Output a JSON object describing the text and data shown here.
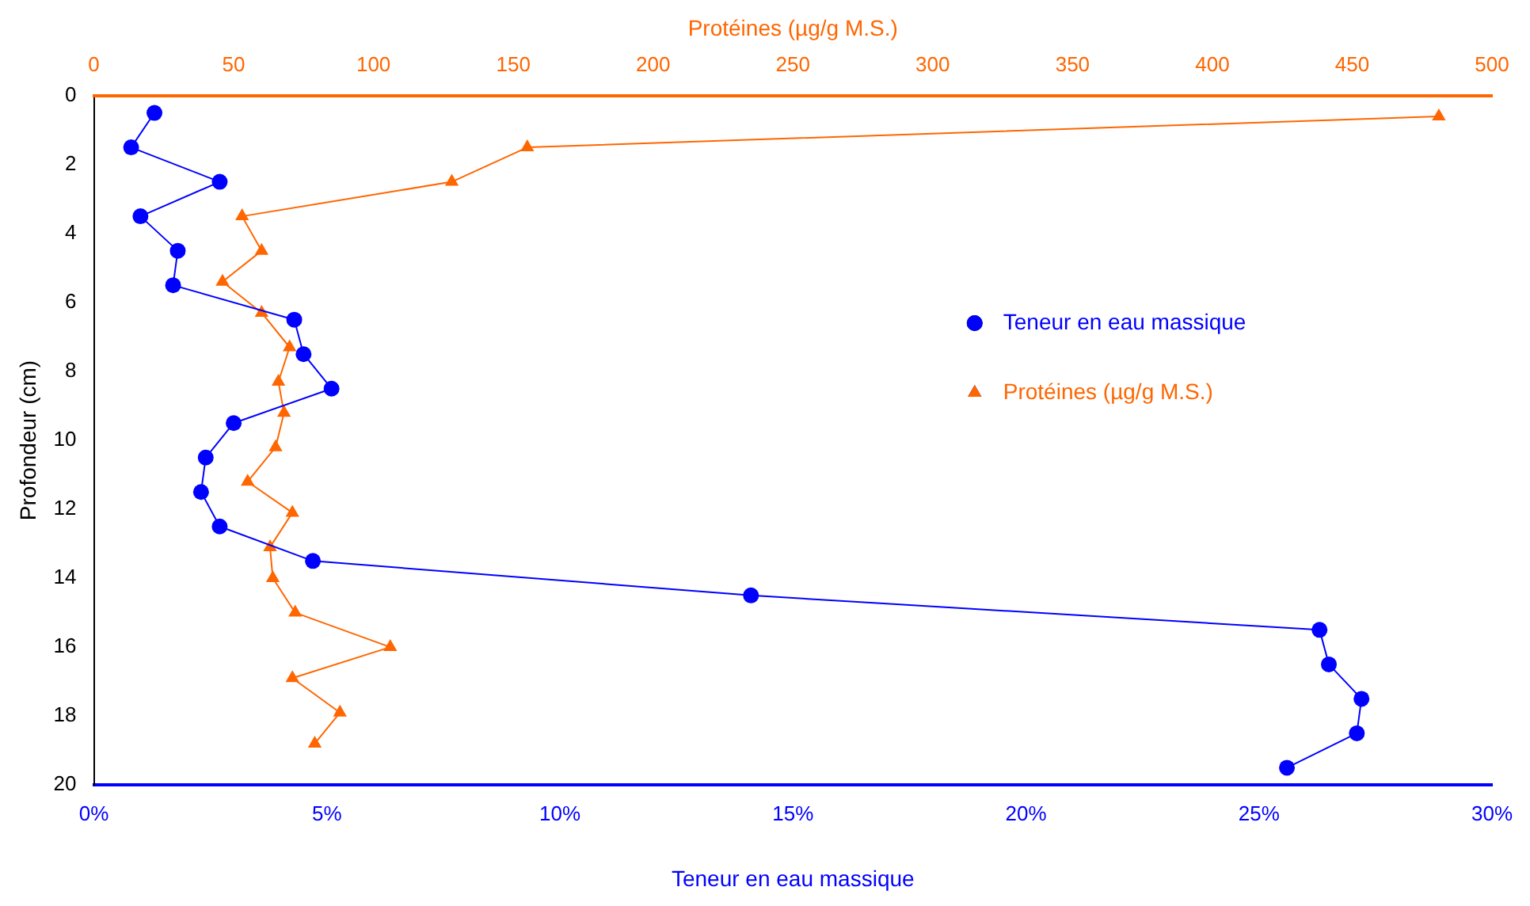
{
  "chart_data": {
    "type": "line",
    "xlabel": "Teneur en eau massique",
    "x2label": "Protéines (µg/g M.S.)",
    "ylabel": "Profondeur (cm)",
    "xlim": [
      0,
      30
    ],
    "xticks": [
      {
        "value": 0,
        "label": "0%"
      },
      {
        "value": 5,
        "label": "5%"
      },
      {
        "value": 10,
        "label": "10%"
      },
      {
        "value": 15,
        "label": "15%"
      },
      {
        "value": 20,
        "label": "20%"
      },
      {
        "value": 25,
        "label": "25%"
      },
      {
        "value": 30,
        "label": "30%"
      }
    ],
    "x2lim": [
      0,
      500
    ],
    "x2ticks": [
      0,
      50,
      100,
      150,
      200,
      250,
      300,
      350,
      400,
      450,
      500
    ],
    "ylim": [
      20,
      0
    ],
    "yticks": [
      0,
      2,
      4,
      6,
      8,
      10,
      12,
      14,
      16,
      18,
      20
    ],
    "grid": false,
    "legend": "right",
    "line_style": "solid",
    "series": [
      {
        "name": "Teneur en eau massique",
        "color": "#0000ff",
        "marker": "circle",
        "x": [
          1.3,
          0.8,
          2.7,
          1.0,
          1.8,
          1.7,
          4.3,
          4.5,
          5.1,
          3.0,
          2.4,
          2.3,
          2.7,
          4.7,
          14.1,
          26.3,
          26.5,
          27.2,
          27.1,
          25.6
        ],
        "values": [
          0.5,
          1.5,
          2.5,
          3.5,
          4.5,
          5.5,
          6.5,
          7.5,
          8.5,
          9.5,
          10.5,
          11.5,
          12.5,
          13.5,
          14.5,
          15.5,
          16.5,
          17.5,
          18.5,
          19.5
        ]
      },
      {
        "name": "Protéines (µg/g M.S.)",
        "color": "#ff6600",
        "marker": "triangle",
        "axis": "x2",
        "x": [
          481,
          155,
          128,
          53,
          60,
          46,
          60,
          70,
          66,
          68,
          65,
          55,
          71,
          63,
          64,
          72,
          106,
          71,
          88,
          79
        ],
        "values": [
          0.6,
          1.5,
          2.5,
          3.5,
          4.5,
          5.4,
          6.3,
          7.3,
          8.3,
          9.2,
          10.2,
          11.2,
          12.1,
          13.1,
          14.0,
          15.0,
          16.0,
          16.9,
          17.9,
          18.8
        ]
      }
    ]
  }
}
